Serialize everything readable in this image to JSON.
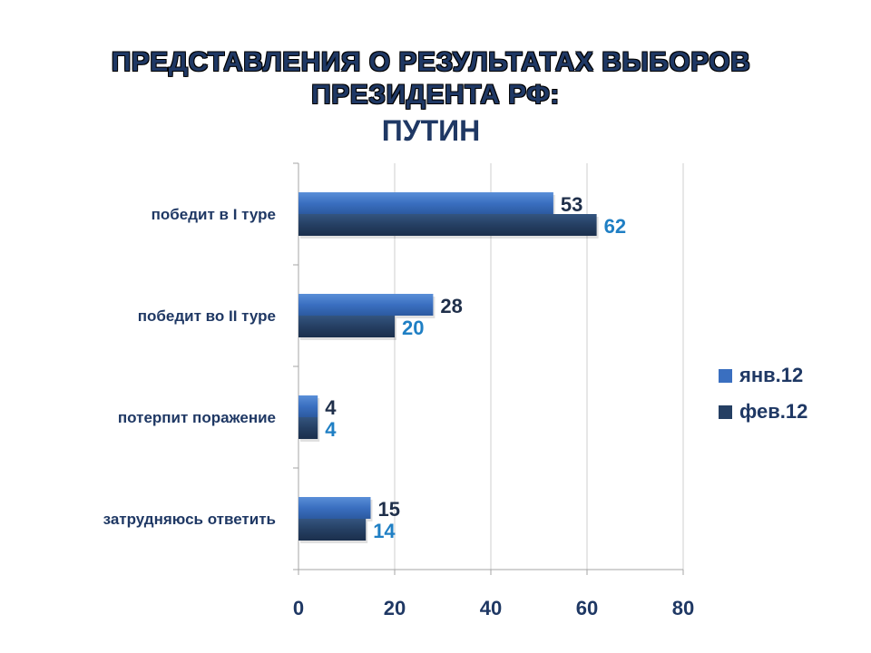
{
  "title_line1": "ПРЕДСТАВЛЕНИЯ О РЕЗУЛЬТАТАХ ВЫБОРОВ",
  "title_line2": "ПРЕЗИДЕНТА РФ:",
  "title_line3": "ПУТИН",
  "colors": {
    "jan": "#3a6fc0",
    "feb": "#253f63",
    "label_jan": "#1f2f4a",
    "label_feb": "#1f7fc4",
    "axis_text": "#1f3864",
    "grid": "#cfcfcf"
  },
  "chart_data": {
    "type": "bar",
    "orientation": "horizontal",
    "categories": [
      "победит в I туре",
      "победит во II туре",
      "потерпит поражение",
      "затрудняюсь ответить"
    ],
    "series": [
      {
        "name": "янв.12",
        "values": [
          53,
          28,
          4,
          15
        ]
      },
      {
        "name": "фев.12",
        "values": [
          62,
          20,
          4,
          14
        ]
      }
    ],
    "xlim": [
      0,
      80
    ],
    "xticks": [
      0,
      20,
      40,
      60,
      80
    ],
    "grid": true,
    "legend_position": "right"
  }
}
